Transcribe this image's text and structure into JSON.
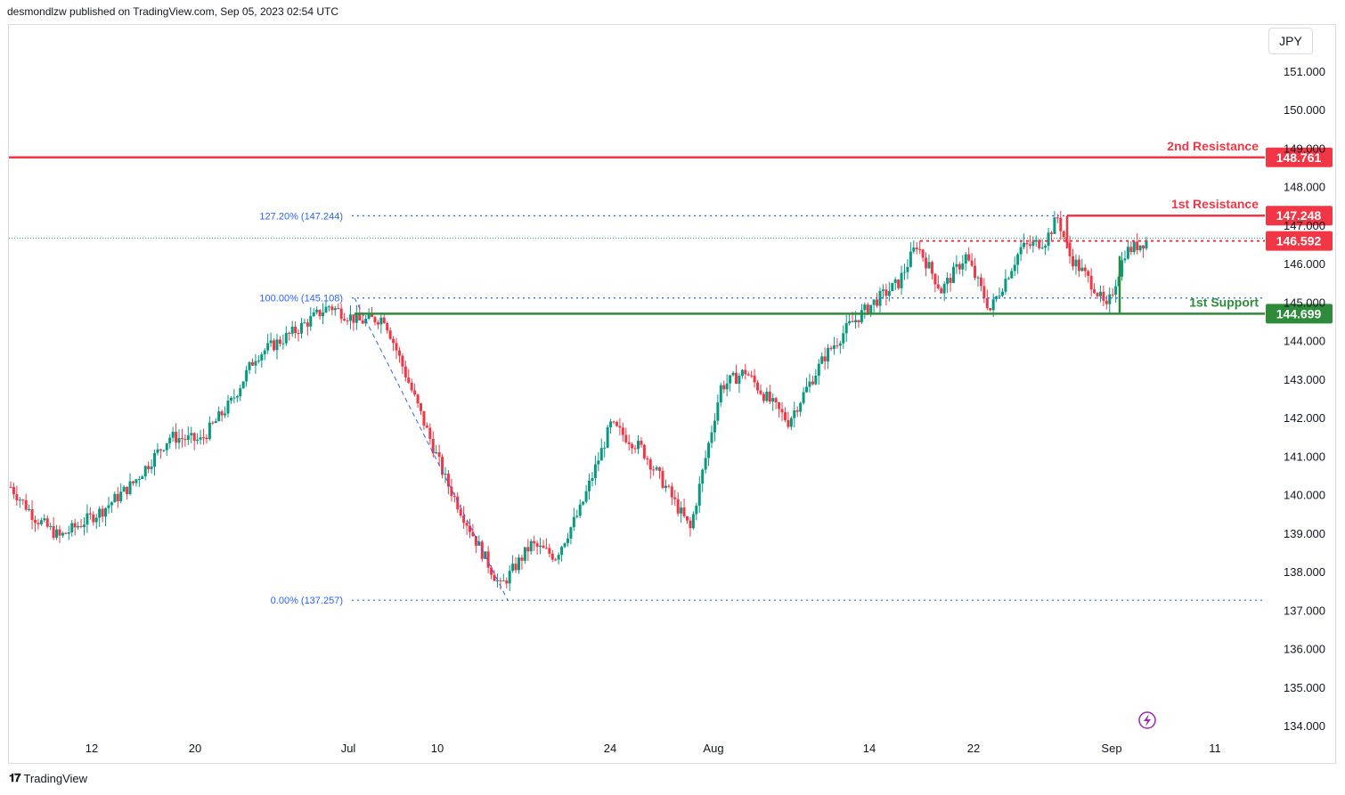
{
  "header": {
    "published_by": "desmondlzw published on TradingView.com, Sep 05, 2023 02:54 UTC"
  },
  "currency": "JPY",
  "brand": "TradingView",
  "colors": {
    "up": "#089981",
    "down": "#f23645",
    "resistance": "#f23645",
    "support": "#2e8b3a",
    "fib": "#2962ff"
  },
  "chart_data": {
    "type": "candlestick",
    "symbol_currency": "JPY",
    "yrange": [
      133.8,
      151.7
    ],
    "y_ticks": [
      "151.000",
      "150.000",
      "149.000",
      "148.000",
      "147.000",
      "146.000",
      "145.000",
      "144.000",
      "143.000",
      "142.000",
      "141.000",
      "140.000",
      "139.000",
      "138.000",
      "137.000",
      "136.000",
      "135.000",
      "134.000"
    ],
    "x_ticks": [
      "12",
      "20",
      "Jul",
      "10",
      "24",
      "Aug",
      "14",
      "22",
      "Sep",
      "11"
    ],
    "levels": [
      {
        "name": "2nd Resistance",
        "value": 148.761,
        "label": "148.761",
        "kind": "resistance"
      },
      {
        "name": "1st Resistance",
        "value": 147.248,
        "label": "147.248",
        "kind": "resistance"
      },
      {
        "name": "",
        "value": 146.592,
        "label": "146.592",
        "kind": "current"
      },
      {
        "name": "1st Support",
        "value": 144.699,
        "label": "144.699",
        "kind": "support"
      }
    ],
    "fibonacci": [
      {
        "label": "127.20% (147.244)",
        "value": 147.244
      },
      {
        "label": "100.00% (145.108)",
        "value": 145.108
      },
      {
        "label": "0.00% (137.257)",
        "value": 137.257
      }
    ],
    "price_path_anchors": [
      {
        "i": 0,
        "v": 140.2
      },
      {
        "i": 8,
        "v": 139.4
      },
      {
        "i": 16,
        "v": 138.9
      },
      {
        "i": 30,
        "v": 139.6
      },
      {
        "i": 40,
        "v": 140.3
      },
      {
        "i": 52,
        "v": 141.5
      },
      {
        "i": 62,
        "v": 141.4
      },
      {
        "i": 72,
        "v": 142.4
      },
      {
        "i": 80,
        "v": 143.6
      },
      {
        "i": 92,
        "v": 144.2
      },
      {
        "i": 104,
        "v": 144.9
      },
      {
        "i": 114,
        "v": 144.5
      },
      {
        "i": 122,
        "v": 144.6
      },
      {
        "i": 132,
        "v": 142.5
      },
      {
        "i": 142,
        "v": 140.4
      },
      {
        "i": 152,
        "v": 138.8
      },
      {
        "i": 160,
        "v": 137.6
      },
      {
        "i": 170,
        "v": 138.7
      },
      {
        "i": 178,
        "v": 138.4
      },
      {
        "i": 186,
        "v": 139.6
      },
      {
        "i": 196,
        "v": 141.8
      },
      {
        "i": 206,
        "v": 141.2
      },
      {
        "i": 214,
        "v": 140.2
      },
      {
        "i": 222,
        "v": 139.1
      },
      {
        "i": 232,
        "v": 142.8
      },
      {
        "i": 240,
        "v": 143.2
      },
      {
        "i": 246,
        "v": 142.6
      },
      {
        "i": 254,
        "v": 141.9
      },
      {
        "i": 266,
        "v": 143.6
      },
      {
        "i": 274,
        "v": 144.4
      },
      {
        "i": 282,
        "v": 145.0
      },
      {
        "i": 290,
        "v": 145.5
      },
      {
        "i": 296,
        "v": 146.5
      },
      {
        "i": 304,
        "v": 145.3
      },
      {
        "i": 312,
        "v": 146.2
      },
      {
        "i": 320,
        "v": 144.8
      },
      {
        "i": 330,
        "v": 146.4
      },
      {
        "i": 338,
        "v": 146.6
      },
      {
        "i": 342,
        "v": 147.2
      },
      {
        "i": 346,
        "v": 146.2
      },
      {
        "i": 354,
        "v": 145.4
      },
      {
        "i": 358,
        "v": 144.8
      },
      {
        "i": 364,
        "v": 146.3
      },
      {
        "i": 371,
        "v": 146.6
      }
    ]
  },
  "icons": {
    "lightning": "lightning-icon"
  }
}
